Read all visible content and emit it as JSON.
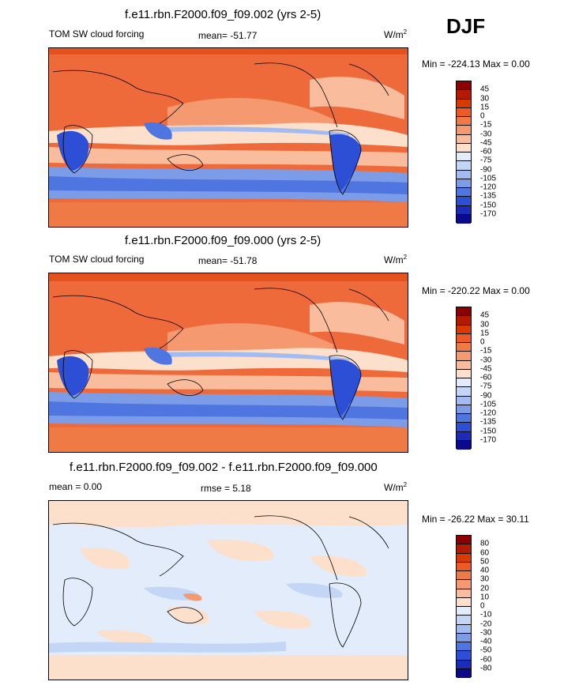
{
  "season": "DJF",
  "panels": [
    {
      "title": "f.e11.rbn.F2000.f09_f09.002 (yrs 2-5)",
      "left_label": "TOM SW cloud forcing",
      "stat_label": "mean=",
      "stat_value": "-51.77",
      "units_base": "W/m",
      "units_sup": "2",
      "minmax": "Min = -224.13 Max =   0.00",
      "colorbar": {
        "labels": [
          "45",
          "30",
          "15",
          "0",
          "-15",
          "-30",
          "-45",
          "-60",
          "-75",
          "-90",
          "-105",
          "-120",
          "-135",
          "-150",
          "-170"
        ],
        "colors": [
          "#8b0000",
          "#b31a00",
          "#d93a00",
          "#ee5a24",
          "#f07a45",
          "#f59a70",
          "#f9bd9e",
          "#fde0cc",
          "#e2ecfb",
          "#c3d6f5",
          "#a2bbf0",
          "#7d9ce8",
          "#4f76e0",
          "#2c4fd6",
          "#1a2cb8",
          "#0a0a8a"
        ]
      },
      "map_icon": "world-map-cloud-forcing"
    },
    {
      "title": "f.e11.rbn.F2000.f09_f09.000 (yrs 2-5)",
      "left_label": "TOM SW cloud forcing",
      "stat_label": "mean=",
      "stat_value": "-51.78",
      "units_base": "W/m",
      "units_sup": "2",
      "minmax": "Min = -220.22 Max =   0.00",
      "colorbar": {
        "labels": [
          "45",
          "30",
          "15",
          "0",
          "-15",
          "-30",
          "-45",
          "-60",
          "-75",
          "-90",
          "-105",
          "-120",
          "-135",
          "-150",
          "-170"
        ],
        "colors": [
          "#8b0000",
          "#b31a00",
          "#d93a00",
          "#ee5a24",
          "#f07a45",
          "#f59a70",
          "#f9bd9e",
          "#fde0cc",
          "#e2ecfb",
          "#c3d6f5",
          "#a2bbf0",
          "#7d9ce8",
          "#4f76e0",
          "#2c4fd6",
          "#1a2cb8",
          "#0a0a8a"
        ]
      },
      "map_icon": "world-map-cloud-forcing"
    },
    {
      "title": "f.e11.rbn.F2000.f09_f09.002 - f.e11.rbn.F2000.f09_f09.000",
      "left_label": "mean =   0.00",
      "stat_label": "rmse =",
      "stat_value": "5.18",
      "units_base": "W/m",
      "units_sup": "2",
      "minmax": "Min = -26.22 Max =  30.11",
      "colorbar": {
        "labels": [
          "80",
          "60",
          "50",
          "40",
          "30",
          "20",
          "10",
          "0",
          "-10",
          "-20",
          "-30",
          "-40",
          "-50",
          "-60",
          "-80"
        ],
        "colors": [
          "#8b0000",
          "#b31a00",
          "#d93a00",
          "#ee5a24",
          "#f07a45",
          "#f59a70",
          "#f9bd9e",
          "#fde0cc",
          "#e2ecfb",
          "#c3d6f5",
          "#a2bbf0",
          "#7d9ce8",
          "#4f76e0",
          "#2c4fd6",
          "#1a2cb8",
          "#0a0a8a"
        ]
      },
      "map_icon": "world-map-difference"
    }
  ]
}
